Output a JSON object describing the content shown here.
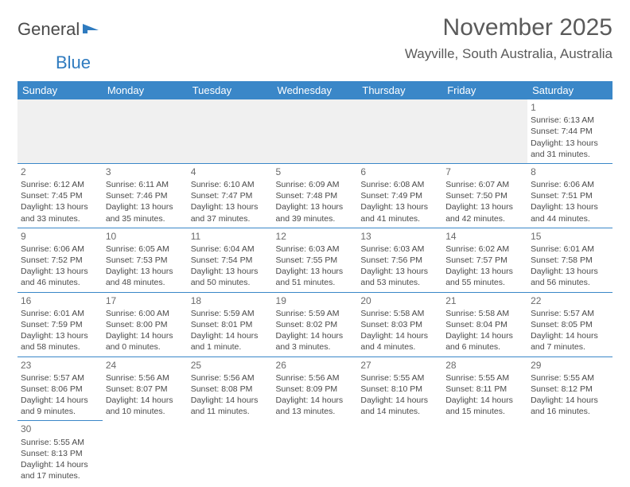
{
  "logo": {
    "text1": "General",
    "text2": "Blue"
  },
  "title": "November 2025",
  "location": "Wayville, South Australia, Australia",
  "accent_color": "#3a87c8",
  "text_color": "#4a4a4a",
  "weekday_headers": [
    "Sunday",
    "Monday",
    "Tuesday",
    "Wednesday",
    "Thursday",
    "Friday",
    "Saturday"
  ],
  "weeks": [
    [
      null,
      null,
      null,
      null,
      null,
      null,
      {
        "n": "1",
        "sunrise": "Sunrise: 6:13 AM",
        "sunset": "Sunset: 7:44 PM",
        "day1": "Daylight: 13 hours",
        "day2": "and 31 minutes."
      }
    ],
    [
      {
        "n": "2",
        "sunrise": "Sunrise: 6:12 AM",
        "sunset": "Sunset: 7:45 PM",
        "day1": "Daylight: 13 hours",
        "day2": "and 33 minutes."
      },
      {
        "n": "3",
        "sunrise": "Sunrise: 6:11 AM",
        "sunset": "Sunset: 7:46 PM",
        "day1": "Daylight: 13 hours",
        "day2": "and 35 minutes."
      },
      {
        "n": "4",
        "sunrise": "Sunrise: 6:10 AM",
        "sunset": "Sunset: 7:47 PM",
        "day1": "Daylight: 13 hours",
        "day2": "and 37 minutes."
      },
      {
        "n": "5",
        "sunrise": "Sunrise: 6:09 AM",
        "sunset": "Sunset: 7:48 PM",
        "day1": "Daylight: 13 hours",
        "day2": "and 39 minutes."
      },
      {
        "n": "6",
        "sunrise": "Sunrise: 6:08 AM",
        "sunset": "Sunset: 7:49 PM",
        "day1": "Daylight: 13 hours",
        "day2": "and 41 minutes."
      },
      {
        "n": "7",
        "sunrise": "Sunrise: 6:07 AM",
        "sunset": "Sunset: 7:50 PM",
        "day1": "Daylight: 13 hours",
        "day2": "and 42 minutes."
      },
      {
        "n": "8",
        "sunrise": "Sunrise: 6:06 AM",
        "sunset": "Sunset: 7:51 PM",
        "day1": "Daylight: 13 hours",
        "day2": "and 44 minutes."
      }
    ],
    [
      {
        "n": "9",
        "sunrise": "Sunrise: 6:06 AM",
        "sunset": "Sunset: 7:52 PM",
        "day1": "Daylight: 13 hours",
        "day2": "and 46 minutes."
      },
      {
        "n": "10",
        "sunrise": "Sunrise: 6:05 AM",
        "sunset": "Sunset: 7:53 PM",
        "day1": "Daylight: 13 hours",
        "day2": "and 48 minutes."
      },
      {
        "n": "11",
        "sunrise": "Sunrise: 6:04 AM",
        "sunset": "Sunset: 7:54 PM",
        "day1": "Daylight: 13 hours",
        "day2": "and 50 minutes."
      },
      {
        "n": "12",
        "sunrise": "Sunrise: 6:03 AM",
        "sunset": "Sunset: 7:55 PM",
        "day1": "Daylight: 13 hours",
        "day2": "and 51 minutes."
      },
      {
        "n": "13",
        "sunrise": "Sunrise: 6:03 AM",
        "sunset": "Sunset: 7:56 PM",
        "day1": "Daylight: 13 hours",
        "day2": "and 53 minutes."
      },
      {
        "n": "14",
        "sunrise": "Sunrise: 6:02 AM",
        "sunset": "Sunset: 7:57 PM",
        "day1": "Daylight: 13 hours",
        "day2": "and 55 minutes."
      },
      {
        "n": "15",
        "sunrise": "Sunrise: 6:01 AM",
        "sunset": "Sunset: 7:58 PM",
        "day1": "Daylight: 13 hours",
        "day2": "and 56 minutes."
      }
    ],
    [
      {
        "n": "16",
        "sunrise": "Sunrise: 6:01 AM",
        "sunset": "Sunset: 7:59 PM",
        "day1": "Daylight: 13 hours",
        "day2": "and 58 minutes."
      },
      {
        "n": "17",
        "sunrise": "Sunrise: 6:00 AM",
        "sunset": "Sunset: 8:00 PM",
        "day1": "Daylight: 14 hours",
        "day2": "and 0 minutes."
      },
      {
        "n": "18",
        "sunrise": "Sunrise: 5:59 AM",
        "sunset": "Sunset: 8:01 PM",
        "day1": "Daylight: 14 hours",
        "day2": "and 1 minute."
      },
      {
        "n": "19",
        "sunrise": "Sunrise: 5:59 AM",
        "sunset": "Sunset: 8:02 PM",
        "day1": "Daylight: 14 hours",
        "day2": "and 3 minutes."
      },
      {
        "n": "20",
        "sunrise": "Sunrise: 5:58 AM",
        "sunset": "Sunset: 8:03 PM",
        "day1": "Daylight: 14 hours",
        "day2": "and 4 minutes."
      },
      {
        "n": "21",
        "sunrise": "Sunrise: 5:58 AM",
        "sunset": "Sunset: 8:04 PM",
        "day1": "Daylight: 14 hours",
        "day2": "and 6 minutes."
      },
      {
        "n": "22",
        "sunrise": "Sunrise: 5:57 AM",
        "sunset": "Sunset: 8:05 PM",
        "day1": "Daylight: 14 hours",
        "day2": "and 7 minutes."
      }
    ],
    [
      {
        "n": "23",
        "sunrise": "Sunrise: 5:57 AM",
        "sunset": "Sunset: 8:06 PM",
        "day1": "Daylight: 14 hours",
        "day2": "and 9 minutes."
      },
      {
        "n": "24",
        "sunrise": "Sunrise: 5:56 AM",
        "sunset": "Sunset: 8:07 PM",
        "day1": "Daylight: 14 hours",
        "day2": "and 10 minutes."
      },
      {
        "n": "25",
        "sunrise": "Sunrise: 5:56 AM",
        "sunset": "Sunset: 8:08 PM",
        "day1": "Daylight: 14 hours",
        "day2": "and 11 minutes."
      },
      {
        "n": "26",
        "sunrise": "Sunrise: 5:56 AM",
        "sunset": "Sunset: 8:09 PM",
        "day1": "Daylight: 14 hours",
        "day2": "and 13 minutes."
      },
      {
        "n": "27",
        "sunrise": "Sunrise: 5:55 AM",
        "sunset": "Sunset: 8:10 PM",
        "day1": "Daylight: 14 hours",
        "day2": "and 14 minutes."
      },
      {
        "n": "28",
        "sunrise": "Sunrise: 5:55 AM",
        "sunset": "Sunset: 8:11 PM",
        "day1": "Daylight: 14 hours",
        "day2": "and 15 minutes."
      },
      {
        "n": "29",
        "sunrise": "Sunrise: 5:55 AM",
        "sunset": "Sunset: 8:12 PM",
        "day1": "Daylight: 14 hours",
        "day2": "and 16 minutes."
      }
    ],
    [
      {
        "n": "30",
        "sunrise": "Sunrise: 5:55 AM",
        "sunset": "Sunset: 8:13 PM",
        "day1": "Daylight: 14 hours",
        "day2": "and 17 minutes."
      },
      null,
      null,
      null,
      null,
      null,
      null
    ]
  ]
}
